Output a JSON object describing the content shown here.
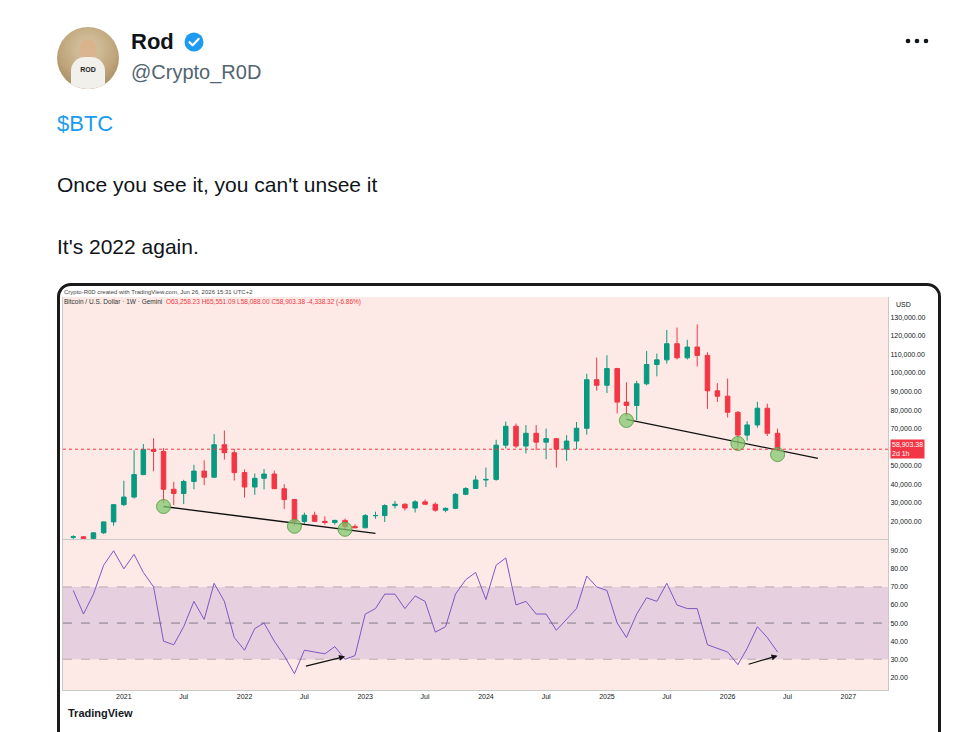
{
  "post": {
    "author": "Rod",
    "handle": "@Crypto_R0D",
    "avatar_text": "ROD",
    "cashtag": "$BTC",
    "lines": [
      "Once you see it, you can't unsee it",
      "It's 2022 again."
    ]
  },
  "chart_header": {
    "credit": "Crypto-R0D created with TradingView.com, Jun 26, 2026 15:31 UTC+2",
    "symbol": "Bitcoin / U.S. Dollar · 1W · Gemini",
    "ohlc": "O63,258.23 H65,551.09 L58,088.00 C58,903.38 -4,338.32 (-6.86%)",
    "watermark": "TradingView"
  },
  "chart_data": {
    "type": "candlestick",
    "x": [
      "2020-08",
      "2020-09",
      "2020-10",
      "2020-11",
      "2020-12",
      "2021-01",
      "2021-02",
      "2021-03",
      "2021-04",
      "2021-05",
      "2021-06",
      "2021-07",
      "2021-08",
      "2021-09",
      "2021-10",
      "2021-11",
      "2021-12",
      "2022-01",
      "2022-02",
      "2022-03",
      "2022-04",
      "2022-05",
      "2022-06",
      "2022-07",
      "2022-08",
      "2022-09",
      "2022-10",
      "2022-11",
      "2022-12",
      "2023-01",
      "2023-02",
      "2023-03",
      "2023-04",
      "2023-05",
      "2023-06",
      "2023-07",
      "2023-08",
      "2023-09",
      "2023-10",
      "2023-11",
      "2023-12",
      "2024-01",
      "2024-02",
      "2024-03",
      "2024-04",
      "2024-05",
      "2024-06",
      "2024-07",
      "2024-08",
      "2024-09",
      "2024-10",
      "2024-11",
      "2024-12",
      "2025-01",
      "2025-02",
      "2025-03",
      "2025-04",
      "2025-05",
      "2025-06",
      "2025-07",
      "2025-08",
      "2025-09",
      "2025-10",
      "2025-11",
      "2025-12",
      "2026-01",
      "2026-02",
      "2026-03",
      "2026-04",
      "2026-05",
      "2026-06"
    ],
    "open": [
      11350,
      11650,
      10780,
      13800,
      19700,
      29000,
      33100,
      45200,
      58800,
      57700,
      37300,
      35000,
      41500,
      47100,
      43800,
      61300,
      57000,
      46300,
      38500,
      43200,
      45500,
      37600,
      31800,
      19900,
      23300,
      20000,
      19400,
      20500,
      17200,
      16500,
      23100,
      23100,
      28500,
      29200,
      27200,
      30500,
      29200,
      26000,
      27000,
      34600,
      37700,
      42300,
      42600,
      61100,
      71300,
      60600,
      67500,
      62700,
      64600,
      58900,
      63300,
      70200,
      96400,
      93400,
      102400,
      84300,
      82500,
      94200,
      104600,
      107100,
      115800,
      108200,
      114000,
      109500,
      90400,
      87500,
      78800,
      66500,
      72000,
      81000,
      67500
    ],
    "high": [
      12470,
      12080,
      14100,
      19800,
      29300,
      41900,
      58300,
      61700,
      64800,
      59500,
      41300,
      42400,
      50500,
      52900,
      67000,
      69000,
      59100,
      48000,
      45800,
      48200,
      47400,
      40000,
      31900,
      24700,
      25200,
      22700,
      20900,
      21500,
      18400,
      23900,
      25200,
      29200,
      31000,
      29800,
      31400,
      31800,
      30200,
      27500,
      35200,
      38400,
      44700,
      49000,
      64000,
      73800,
      72700,
      71900,
      71900,
      70000,
      65000,
      66500,
      73600,
      99600,
      108300,
      109600,
      102800,
      95000,
      95800,
      111900,
      110500,
      123200,
      124500,
      117900,
      126200,
      111200,
      94500,
      97000,
      79500,
      74000,
      84500,
      83500,
      70000
    ],
    "low": [
      10500,
      9880,
      10380,
      13200,
      17600,
      28200,
      32300,
      44900,
      47000,
      30000,
      28800,
      29300,
      37300,
      39600,
      43300,
      53300,
      42000,
      32900,
      34300,
      37200,
      37700,
      26700,
      17600,
      18800,
      19600,
      18200,
      18200,
      15500,
      16300,
      16500,
      21400,
      19600,
      26900,
      25800,
      24800,
      28900,
      25200,
      24900,
      26600,
      34100,
      37600,
      38500,
      41900,
      59300,
      59600,
      56600,
      58400,
      53500,
      49000,
      52600,
      58900,
      66800,
      90500,
      89200,
      78200,
      76600,
      74500,
      93400,
      98200,
      105100,
      107300,
      107300,
      103500,
      80600,
      84400,
      76000,
      60100,
      63500,
      70500,
      66000,
      58088
    ],
    "close": [
      11650,
      10780,
      13800,
      19700,
      29000,
      33100,
      45200,
      58800,
      57700,
      37300,
      35000,
      41500,
      47100,
      43800,
      61300,
      57000,
      46300,
      38500,
      43200,
      45500,
      37600,
      31800,
      19900,
      23300,
      20000,
      19400,
      20500,
      17200,
      16500,
      23100,
      23100,
      28500,
      29200,
      27200,
      30500,
      29200,
      26000,
      27000,
      34600,
      37700,
      42300,
      42600,
      61100,
      71300,
      60600,
      67500,
      62700,
      64600,
      58900,
      63300,
      70200,
      96400,
      93400,
      102400,
      84300,
      82500,
      94200,
      104600,
      107100,
      115800,
      108200,
      114000,
      109500,
      90400,
      87500,
      78800,
      66500,
      72000,
      81000,
      67500,
      58903.38
    ],
    "series": [
      {
        "type": "line",
        "color": "#7e57c2",
        "axis": "y2",
        "values": [
          68,
          55,
          66,
          82,
          90,
          80,
          88,
          78,
          70,
          40,
          38,
          48,
          62,
          52,
          72,
          62,
          42,
          35,
          47,
          50,
          40,
          32,
          22,
          35,
          34,
          33,
          37,
          30,
          32,
          55,
          58,
          66,
          66,
          58,
          65,
          62,
          45,
          48,
          66,
          74,
          78,
          63,
          82,
          86,
          60,
          62,
          55,
          55,
          46,
          52,
          58,
          76,
          70,
          68,
          50,
          42,
          55,
          64,
          62,
          72,
          60,
          58,
          58,
          38,
          36,
          34,
          27,
          36,
          48,
          42,
          34
        ]
      }
    ],
    "xlim": [
      "2020-07",
      "2027-05"
    ],
    "xticks": [
      {
        "value": "2021-01",
        "label": "2021"
      },
      {
        "value": "2021-07",
        "label": "Jul"
      },
      {
        "value": "2022-01",
        "label": "2022"
      },
      {
        "value": "2022-07",
        "label": "Jul"
      },
      {
        "value": "2023-01",
        "label": "2023"
      },
      {
        "value": "2023-07",
        "label": "Jul"
      },
      {
        "value": "2024-01",
        "label": "2024"
      },
      {
        "value": "2024-07",
        "label": "Jul"
      },
      {
        "value": "2025-01",
        "label": "2025"
      },
      {
        "value": "2025-07",
        "label": "Jul"
      },
      {
        "value": "2026-01",
        "label": "2026"
      },
      {
        "value": "2026-07",
        "label": "Jul"
      },
      {
        "value": "2027-01",
        "label": "2027"
      }
    ],
    "ylim": [
      10000,
      141000
    ],
    "yticks": [
      {
        "value": 20000,
        "label": "20,000.00"
      },
      {
        "value": 30000,
        "label": "30,000.00"
      },
      {
        "value": 40000,
        "label": "40,000.00"
      },
      {
        "value": 50000,
        "label": "50,000.00"
      },
      {
        "value": 60000,
        "label": "60,000.00"
      },
      {
        "value": 70000,
        "label": "70,000.00"
      },
      {
        "value": 80000,
        "label": "80,000.00"
      },
      {
        "value": 90000,
        "label": "90,000.00"
      },
      {
        "value": 100000,
        "label": "100,000.00"
      },
      {
        "value": 110000,
        "label": "110,000.00"
      },
      {
        "value": 120000,
        "label": "120,000.00"
      },
      {
        "value": 130000,
        "label": "130,000.00"
      }
    ],
    "y2lim": [
      13,
      96
    ],
    "y2ticks": [
      {
        "value": 20,
        "label": "20.00"
      },
      {
        "value": 30,
        "label": "30.00"
      },
      {
        "value": 40,
        "label": "40.00"
      },
      {
        "value": 50,
        "label": "50.00"
      },
      {
        "value": 60,
        "label": "60.00"
      },
      {
        "value": 70,
        "label": "70.00"
      },
      {
        "value": 80,
        "label": "80.00"
      },
      {
        "value": 90,
        "label": "90.00"
      }
    ],
    "grid": false,
    "axis_unit": "USD",
    "last_price": {
      "value": 58903.38,
      "label": "58,903.38",
      "countdown": "2d 1h"
    },
    "rsi_band": [
      30,
      70
    ],
    "rsi_midline": 50,
    "trendlines": [
      {
        "from": {
          "x": "2021-05",
          "y": 28000
        },
        "to": {
          "x": "2023-02",
          "y": 13500
        }
      },
      {
        "from": {
          "x": "2025-03",
          "y": 75000
        },
        "to": {
          "x": "2026-10",
          "y": 54000
        }
      }
    ],
    "pivots": [
      {
        "x": "2021-05",
        "y": 28000
      },
      {
        "x": "2022-06",
        "y": 17300
      },
      {
        "x": "2022-11",
        "y": 15700
      },
      {
        "x": "2025-03",
        "y": 74400
      },
      {
        "x": "2026-02",
        "y": 62000
      },
      {
        "x": "2026-06",
        "y": 56000
      }
    ],
    "rsi_arrows": [
      {
        "from": {
          "x": "2022-07",
          "y": 26
        },
        "to": {
          "x": "2022-11",
          "y": 31.5
        }
      },
      {
        "from": {
          "x": "2026-03",
          "y": 27
        },
        "to": {
          "x": "2026-06",
          "y": 32
        }
      }
    ]
  }
}
